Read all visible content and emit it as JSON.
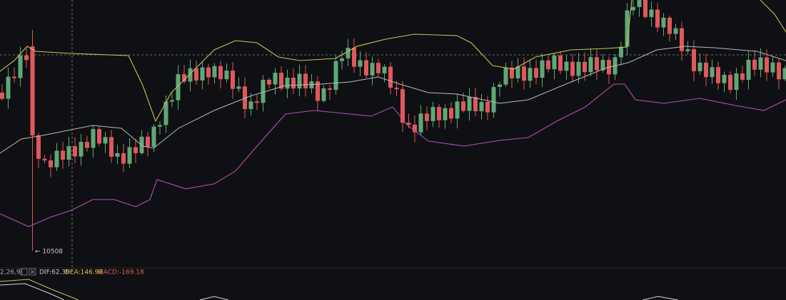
{
  "low_marker": "← 10508",
  "indicator": {
    "params": "2,26,9)",
    "dif": "DIF:62.39",
    "dea": "DEA:146.98",
    "macd": "MACD:-169.18"
  }
}
